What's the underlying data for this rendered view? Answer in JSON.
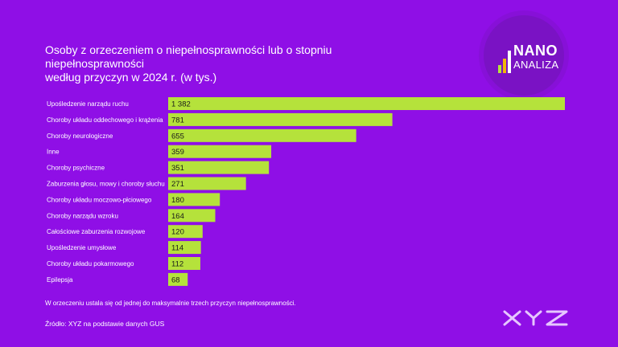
{
  "title": {
    "line1": "Osoby z orzeczeniem o niepełnosprawności lub o stopniu niepełnosprawności",
    "line2": "według przyczyn w 2024 r. (w tys.)"
  },
  "logo": {
    "word1": "NANO",
    "word2": "ANALIZA"
  },
  "note": "W orzeczeniu ustala się od jednej do maksymalnie trzech przyczyn niepełnosprawności.",
  "source": "Źródło: XYZ na podstawie danych GUS",
  "colors": {
    "background": "#8f0fe6",
    "bar": "#b5e23b",
    "bar_text": "#1a1a1a"
  },
  "chart_data": {
    "type": "bar",
    "orientation": "horizontal",
    "title": "Osoby z orzeczeniem o niepełnosprawności lub o stopniu niepełnosprawności według przyczyn w 2024 r. (w tys.)",
    "categories": [
      "Upośledzenie narządu ruchu",
      "Choroby układu oddechowego i krążenia",
      "Choroby neurologiczne",
      "Inne",
      "Choroby psychiczne",
      "Zaburzenia głosu, mowy i choroby słuchu",
      "Choroby układu moczowo-płciowego",
      "Choroby narządu wzroku",
      "Całościowe zaburzenia rozwojowe",
      "Upośledzenie umysłowe",
      "Choroby układu pokarmowego",
      "Epilepsja"
    ],
    "values": [
      1382,
      781,
      655,
      359,
      351,
      271,
      180,
      164,
      120,
      114,
      112,
      68
    ],
    "value_labels": [
      "1 382",
      "781",
      "655",
      "359",
      "351",
      "271",
      "180",
      "164",
      "120",
      "114",
      "112",
      "68"
    ],
    "xlim": [
      0,
      1382
    ],
    "grid": false,
    "legend": "none"
  }
}
